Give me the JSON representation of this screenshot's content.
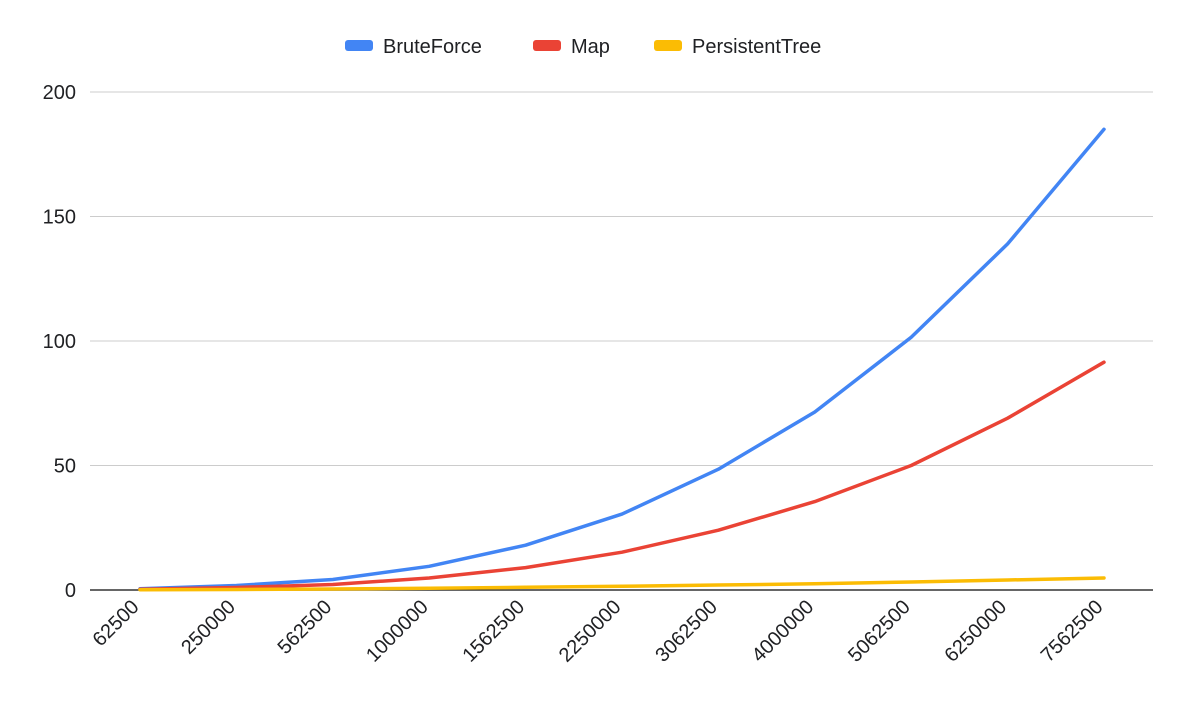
{
  "chart_data": {
    "type": "line",
    "categories": [
      "62500",
      "250000",
      "562500",
      "1000000",
      "1562500",
      "2250000",
      "3062500",
      "4000000",
      "5062500",
      "6250000",
      "7562500"
    ],
    "series": [
      {
        "name": "BruteForce",
        "color": "#4285F4",
        "values": [
          0.5,
          1.8,
          4.2,
          9.5,
          18,
          30.5,
          48.5,
          71.5,
          101.5,
          139,
          185
        ]
      },
      {
        "name": "Map",
        "color": "#EA4335",
        "values": [
          0.3,
          1.0,
          2.2,
          4.8,
          9.0,
          15.2,
          24,
          35.5,
          50,
          69,
          91.5
        ]
      },
      {
        "name": "PersistentTree",
        "color": "#FBBC04",
        "values": [
          0.1,
          0.2,
          0.4,
          0.7,
          1.1,
          1.5,
          2.0,
          2.5,
          3.2,
          4.0,
          4.8
        ]
      }
    ],
    "ylim": [
      0,
      200
    ],
    "yticks": [
      0,
      50,
      100,
      150,
      200
    ],
    "grid": true,
    "legend_position": "top-center",
    "title": "",
    "xlabel": "",
    "ylabel": ""
  }
}
